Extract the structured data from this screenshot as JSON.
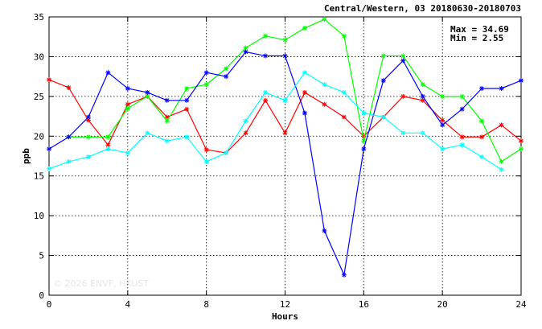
{
  "chart_data": {
    "type": "line",
    "title": "Central/Western, 03 20180630-20180703",
    "xlabel": "Hours",
    "ylabel": "ppb",
    "xlim": [
      0,
      24
    ],
    "ylim": [
      0,
      35
    ],
    "xticks": [
      0,
      4,
      8,
      12,
      16,
      20,
      24
    ],
    "yticks": [
      0,
      5,
      10,
      15,
      20,
      25,
      30,
      35
    ],
    "grid": true,
    "max_label": "Max = 34.69",
    "min_label": "Min =  2.55",
    "watermark": "© 2026  ENVF, HKUST",
    "x": [
      0,
      1,
      2,
      3,
      4,
      5,
      6,
      7,
      8,
      9,
      10,
      11,
      12,
      13,
      14,
      15,
      16,
      17,
      18,
      19,
      20,
      21,
      22,
      23,
      24
    ],
    "series": [
      {
        "color": "#ff0000",
        "values": [
          27.1,
          26.1,
          22.0,
          18.9,
          24.0,
          25.0,
          22.4,
          23.4,
          18.3,
          17.9,
          20.4,
          24.5,
          20.4,
          25.5,
          24.0,
          22.4,
          20.0,
          22.4,
          25.0,
          24.5,
          22.0,
          19.9,
          19.9,
          21.4,
          19.4
        ]
      },
      {
        "color": "#00ff00",
        "values": [
          null,
          19.9,
          19.9,
          19.9,
          23.5,
          25.0,
          21.9,
          26.0,
          26.5,
          28.5,
          31.1,
          32.6,
          32.1,
          33.6,
          34.69,
          32.6,
          19.4,
          30.1,
          30.1,
          26.5,
          25.0,
          25.0,
          21.9,
          16.8,
          18.4
        ]
      },
      {
        "color": "#0000ff",
        "values": [
          18.4,
          19.9,
          22.4,
          28.0,
          26.0,
          25.5,
          24.5,
          24.5,
          28.0,
          27.5,
          30.6,
          30.1,
          30.1,
          22.9,
          8.1,
          2.55,
          18.4,
          27.0,
          29.5,
          25.0,
          21.4,
          23.4,
          26.0,
          26.0,
          27.0
        ]
      },
      {
        "color": "#00ffff",
        "values": [
          15.9,
          16.8,
          17.4,
          18.4,
          17.9,
          20.4,
          19.4,
          19.9,
          16.8,
          17.9,
          21.9,
          25.5,
          24.5,
          28.0,
          26.5,
          25.5,
          22.9,
          22.4,
          20.4,
          20.4,
          18.4,
          18.9,
          17.4,
          15.8,
          null
        ]
      }
    ]
  }
}
